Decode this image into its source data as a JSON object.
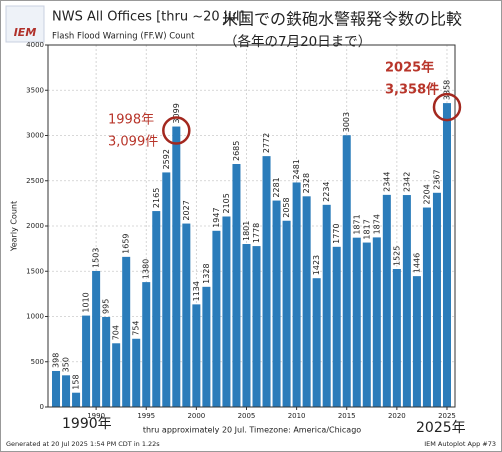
{
  "chart_data": {
    "type": "bar",
    "title": "NWS All Offices [thru ~20 Jul]",
    "subtitle": "Flash Flood Warning (FF.W) Count",
    "title_ja": "米国での鉄砲水警報発令数の比較",
    "subtitle_ja": "（各年の7月20日まで）",
    "logo": "IEM",
    "y_label": "Yearly Count",
    "x_label": "thru approximately 20 Jul. Timezone: America/Chicago",
    "footer_left": "Generated at 20 Jul 2025 1:54 PM CDT in 1.22s",
    "footer_right": "IEM Autoplot App #73",
    "annotations": {
      "a1998_year": "1998年",
      "a1998_count": "3,099件",
      "a2025_year": "2025年",
      "a2025_count": "3,358件",
      "start": "1990年",
      "end": "2025年"
    },
    "x": [
      1986,
      1987,
      1988,
      1989,
      1990,
      1991,
      1992,
      1993,
      1994,
      1995,
      1996,
      1997,
      1998,
      1999,
      2000,
      2001,
      2002,
      2003,
      2004,
      2005,
      2006,
      2007,
      2008,
      2009,
      2010,
      2011,
      2012,
      2013,
      2014,
      2015,
      2016,
      2017,
      2018,
      2019,
      2020,
      2021,
      2022,
      2023,
      2024,
      2025
    ],
    "values": [
      398,
      350,
      158,
      1010,
      1503,
      995,
      704,
      1659,
      754,
      1380,
      2165,
      2592,
      3099,
      2027,
      1134,
      1328,
      1947,
      2105,
      2685,
      1801,
      1778,
      2772,
      2281,
      2058,
      2481,
      2328,
      1423,
      2234,
      1770,
      3003,
      1871,
      1817,
      1874,
      2344,
      1525,
      2342,
      1446,
      2204,
      2367,
      3358
    ],
    "color": "#2b7cba",
    "xlim": [
      1985.2,
      2025.8
    ],
    "xticks": [
      1990,
      1995,
      2000,
      2005,
      2010,
      2015,
      2020,
      2025
    ],
    "ylim": [
      0,
      4000
    ],
    "yticks": [
      0,
      500,
      1000,
      1500,
      2000,
      2500,
      3000,
      3500,
      4000
    ],
    "grid": true
  }
}
